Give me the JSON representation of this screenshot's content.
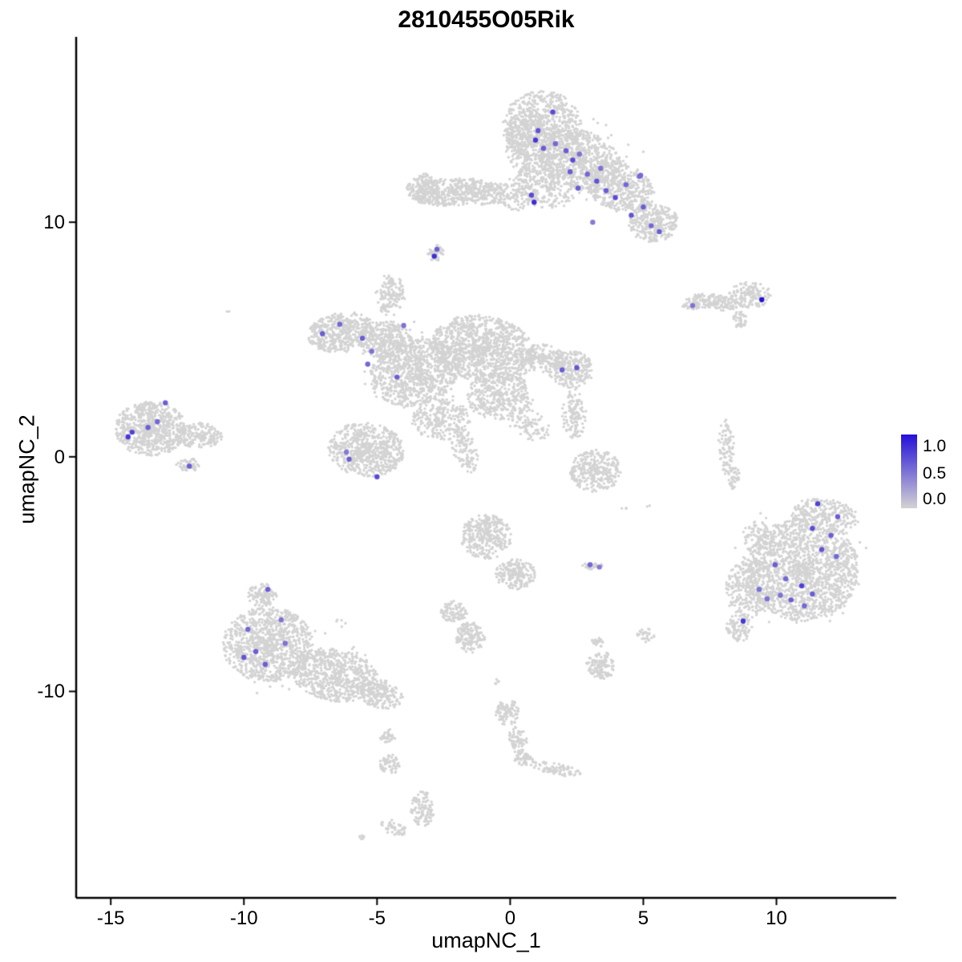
{
  "title": "2810455O05Rik",
  "chart_data": {
    "type": "scatter",
    "title": "2810455O05Rik",
    "xlabel": "umapNC_1",
    "ylabel": "umapNC_2",
    "xlim": [
      -16.3,
      14.5
    ],
    "ylim": [
      -18.8,
      17.9
    ],
    "x_ticks": [
      -15,
      -10,
      -5,
      0,
      5,
      10
    ],
    "y_ticks": [
      -10,
      0,
      10
    ],
    "grid": false,
    "axis_color": "#000000",
    "point_color_zero": "#d3d3d3",
    "point_color_max": "#2410d8",
    "legend": {
      "position": "right",
      "labels": [
        "1.0",
        "0.5",
        "0.0"
      ]
    },
    "cluster_format": [
      "cx",
      "cy",
      "rx",
      "ry",
      "rot_deg",
      "n"
    ],
    "background_clusters": [
      [
        1.2,
        14.1,
        1.5,
        1.5,
        0,
        700
      ],
      [
        0.6,
        13.4,
        0.8,
        1.4,
        0,
        250
      ],
      [
        2.6,
        12.7,
        1.6,
        1.2,
        -20,
        650
      ],
      [
        4.1,
        11.5,
        1.4,
        1.0,
        -30,
        450
      ],
      [
        5.35,
        10.0,
        0.95,
        0.85,
        0,
        300
      ],
      [
        1.4,
        11.6,
        1.2,
        1.0,
        0,
        250
      ],
      [
        0.2,
        11.2,
        0.8,
        0.7,
        0,
        120
      ],
      [
        2.5,
        12.5,
        2.6,
        2.0,
        0,
        80
      ],
      [
        -2.2,
        11.3,
        1.6,
        0.6,
        5,
        380
      ],
      [
        -3.3,
        11.5,
        0.6,
        0.6,
        0,
        140
      ],
      [
        -0.9,
        11.2,
        0.7,
        0.5,
        0,
        100
      ],
      [
        -2.8,
        8.7,
        0.3,
        0.35,
        0,
        45
      ],
      [
        7.6,
        6.6,
        1.0,
        0.35,
        -8,
        160
      ],
      [
        9.0,
        6.9,
        0.8,
        0.55,
        0,
        150
      ],
      [
        8.6,
        5.85,
        0.3,
        0.35,
        0,
        40
      ],
      [
        6.8,
        6.45,
        0.35,
        0.2,
        0,
        30
      ],
      [
        -1.0,
        4.6,
        2.0,
        1.4,
        -15,
        1100
      ],
      [
        -3.6,
        3.6,
        1.7,
        1.4,
        20,
        850
      ],
      [
        -6.3,
        5.3,
        1.3,
        0.85,
        10,
        450
      ],
      [
        -4.7,
        5.0,
        1.0,
        0.8,
        0,
        300
      ],
      [
        -4.5,
        6.9,
        0.55,
        0.9,
        0,
        140
      ],
      [
        2.3,
        3.7,
        0.85,
        0.8,
        0,
        260
      ],
      [
        1.2,
        4.2,
        0.9,
        0.6,
        0,
        150
      ],
      [
        -0.4,
        2.6,
        1.3,
        1.0,
        0,
        350
      ],
      [
        -2.6,
        1.6,
        1.1,
        0.9,
        0,
        260
      ],
      [
        -1.7,
        0.3,
        0.45,
        1.0,
        15,
        110
      ],
      [
        0.7,
        1.4,
        0.9,
        0.6,
        -35,
        90
      ],
      [
        -2.5,
        3.8,
        3.2,
        2.2,
        0,
        90
      ],
      [
        -13.5,
        1.2,
        1.35,
        1.15,
        0,
        650
      ],
      [
        -11.7,
        0.9,
        0.9,
        0.55,
        0,
        200
      ],
      [
        -12.1,
        -0.35,
        0.45,
        0.3,
        0,
        50
      ],
      [
        -5.4,
        0.3,
        1.45,
        1.15,
        -10,
        650
      ],
      [
        2.4,
        1.8,
        0.45,
        1.1,
        0,
        130
      ],
      [
        3.2,
        -0.6,
        0.95,
        0.9,
        0,
        300
      ],
      [
        8.1,
        0.4,
        0.3,
        1.2,
        0,
        90
      ],
      [
        8.45,
        -0.9,
        0.25,
        0.5,
        0,
        40
      ],
      [
        11.0,
        -4.8,
        2.1,
        2.2,
        0,
        1500
      ],
      [
        9.0,
        -5.6,
        0.95,
        1.3,
        0,
        280
      ],
      [
        11.8,
        -2.5,
        1.3,
        0.7,
        -10,
        260
      ],
      [
        9.3,
        -3.4,
        0.6,
        0.7,
        0,
        90
      ],
      [
        8.6,
        -7.3,
        0.5,
        0.6,
        0,
        90
      ],
      [
        10.8,
        -4.6,
        2.7,
        2.7,
        0,
        80
      ],
      [
        -9.1,
        -8.0,
        1.7,
        1.6,
        0,
        950
      ],
      [
        -6.6,
        -9.3,
        1.7,
        1.1,
        -15,
        650
      ],
      [
        -4.9,
        -10.1,
        0.9,
        0.6,
        -20,
        200
      ],
      [
        -9.3,
        -5.9,
        0.55,
        0.5,
        0,
        110
      ],
      [
        -4.6,
        -11.9,
        0.3,
        0.3,
        0,
        35
      ],
      [
        -4.5,
        -13.1,
        0.4,
        0.45,
        0,
        55
      ],
      [
        -7.8,
        -8.6,
        2.6,
        2.0,
        0,
        70
      ],
      [
        -0.9,
        -3.4,
        0.95,
        0.95,
        0,
        330
      ],
      [
        0.2,
        -5.0,
        0.75,
        0.65,
        0,
        200
      ],
      [
        -2.1,
        -6.6,
        0.5,
        0.45,
        0,
        90
      ],
      [
        -1.5,
        -7.7,
        0.55,
        0.65,
        0,
        150
      ],
      [
        3.1,
        -4.65,
        0.4,
        0.15,
        0,
        30
      ],
      [
        3.4,
        -8.9,
        0.55,
        0.6,
        0,
        130
      ],
      [
        3.3,
        -7.9,
        0.25,
        0.2,
        0,
        25
      ],
      [
        5.1,
        -7.6,
        0.35,
        0.3,
        0,
        30
      ],
      [
        -0.1,
        -10.9,
        0.45,
        0.55,
        0,
        90
      ],
      [
        0.3,
        -12.1,
        0.35,
        0.6,
        10,
        70
      ],
      [
        0.5,
        -12.9,
        0.35,
        0.3,
        0,
        50
      ],
      [
        1.7,
        -13.3,
        1.0,
        0.25,
        -12,
        80
      ],
      [
        -3.3,
        -15.0,
        0.45,
        0.75,
        0,
        110
      ],
      [
        -4.4,
        -15.8,
        0.55,
        0.3,
        -25,
        45
      ],
      [
        -5.6,
        -16.2,
        0.15,
        0.12,
        0,
        8
      ],
      [
        -10.6,
        6.2,
        0.06,
        0.06,
        0,
        2
      ],
      [
        4.3,
        -2.2,
        0.12,
        0.1,
        0,
        3
      ],
      [
        5.2,
        -2.1,
        0.1,
        0.1,
        0,
        2
      ],
      [
        -0.6,
        -9.6,
        0.2,
        0.15,
        0,
        5
      ]
    ],
    "expressing_point_format": [
      "x",
      "y",
      "value"
    ],
    "expressing_points": [
      [
        1.6,
        14.7,
        0.7
      ],
      [
        1.05,
        13.9,
        0.65
      ],
      [
        0.95,
        13.5,
        0.8
      ],
      [
        1.25,
        13.15,
        0.6
      ],
      [
        1.7,
        13.35,
        0.55
      ],
      [
        2.1,
        13.05,
        0.6
      ],
      [
        2.35,
        12.65,
        0.7
      ],
      [
        2.6,
        12.9,
        0.5
      ],
      [
        2.25,
        12.15,
        0.6
      ],
      [
        2.9,
        12.05,
        0.55
      ],
      [
        3.25,
        11.75,
        0.65
      ],
      [
        3.6,
        11.35,
        0.6
      ],
      [
        3.95,
        11.05,
        0.7
      ],
      [
        4.35,
        11.6,
        0.55
      ],
      [
        4.85,
        11.95,
        0.5
      ],
      [
        5.0,
        10.65,
        0.6
      ],
      [
        4.55,
        10.3,
        0.65
      ],
      [
        5.3,
        9.85,
        0.55
      ],
      [
        5.6,
        9.6,
        0.6
      ],
      [
        3.1,
        10.0,
        0.45
      ],
      [
        0.8,
        11.15,
        0.7
      ],
      [
        0.9,
        10.85,
        0.85
      ],
      [
        2.55,
        11.45,
        0.6
      ],
      [
        3.4,
        12.3,
        0.5
      ],
      [
        4.9,
        12.0,
        0.55
      ],
      [
        -2.75,
        8.85,
        0.6
      ],
      [
        -2.85,
        8.55,
        0.85
      ],
      [
        -7.05,
        5.25,
        0.6
      ],
      [
        -6.4,
        5.65,
        0.55
      ],
      [
        -5.55,
        5.05,
        0.6
      ],
      [
        -5.2,
        4.5,
        0.5
      ],
      [
        -5.35,
        3.95,
        0.55
      ],
      [
        -4.25,
        3.4,
        0.6
      ],
      [
        -4.0,
        5.6,
        0.5
      ],
      [
        1.95,
        3.7,
        0.6
      ],
      [
        2.5,
        3.8,
        0.65
      ],
      [
        -12.95,
        2.3,
        0.6
      ],
      [
        -14.2,
        1.05,
        0.75
      ],
      [
        -13.6,
        1.25,
        0.6
      ],
      [
        -13.25,
        1.5,
        0.55
      ],
      [
        -14.35,
        0.85,
        0.8
      ],
      [
        -12.05,
        -0.4,
        0.6
      ],
      [
        -6.05,
        -0.1,
        0.6
      ],
      [
        -5.0,
        -0.85,
        0.7
      ],
      [
        -6.15,
        0.2,
        0.45
      ],
      [
        9.45,
        6.7,
        1.0
      ],
      [
        6.85,
        6.45,
        0.5
      ],
      [
        3.0,
        -4.6,
        0.55
      ],
      [
        3.35,
        -4.7,
        0.45
      ],
      [
        11.55,
        -2.0,
        0.75
      ],
      [
        12.3,
        -2.55,
        0.6
      ],
      [
        11.35,
        -3.05,
        0.7
      ],
      [
        12.05,
        -3.35,
        0.6
      ],
      [
        11.7,
        -3.95,
        0.65
      ],
      [
        12.25,
        -4.25,
        0.55
      ],
      [
        9.95,
        -4.6,
        0.6
      ],
      [
        10.35,
        -5.2,
        0.55
      ],
      [
        9.35,
        -5.65,
        0.5
      ],
      [
        10.95,
        -5.5,
        0.75
      ],
      [
        11.35,
        -5.85,
        0.6
      ],
      [
        10.55,
        -6.1,
        0.6
      ],
      [
        11.05,
        -6.35,
        0.55
      ],
      [
        9.65,
        -6.05,
        0.5
      ],
      [
        8.75,
        -7.0,
        0.8
      ],
      [
        10.15,
        -5.9,
        0.5
      ],
      [
        -9.1,
        -5.65,
        0.6
      ],
      [
        -9.85,
        -7.35,
        0.55
      ],
      [
        -8.6,
        -6.95,
        0.5
      ],
      [
        -9.55,
        -8.3,
        0.6
      ],
      [
        -10.0,
        -8.55,
        0.65
      ],
      [
        -9.2,
        -8.85,
        0.6
      ],
      [
        -8.45,
        -7.95,
        0.5
      ]
    ]
  }
}
